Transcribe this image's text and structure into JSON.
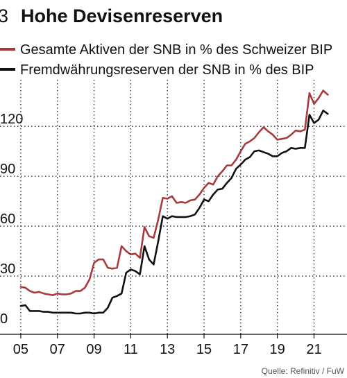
{
  "figure": {
    "number": "3",
    "title": "Hohe Devisenreserven",
    "source": "Quelle: Refinitiv / FuW"
  },
  "colors": {
    "series_total": "#a83a3e",
    "series_fx": "#111111"
  },
  "chart_data": {
    "type": "line",
    "title": "Hohe Devisenreserven",
    "xlabel": "",
    "ylabel": "",
    "x_tick_labels": [
      "05",
      "07",
      "09",
      "11",
      "13",
      "15",
      "17",
      "19",
      "21"
    ],
    "x_ticks": [
      2005,
      2007,
      2009,
      2011,
      2013,
      2015,
      2017,
      2019,
      2021
    ],
    "y_tick_labels": [
      "0",
      "30",
      "60",
      "90",
      "120"
    ],
    "y_ticks": [
      0,
      30,
      60,
      90,
      120
    ],
    "xlim": [
      2004.7,
      2022.8
    ],
    "ylim": [
      -5,
      148
    ],
    "grid": true,
    "legend_position": "top-left",
    "series": [
      {
        "name": "Gesamte Aktiven der SNB in % des Schweizer BIP",
        "color": "#a83a3e",
        "x": [
          2005,
          2005.25,
          2005.5,
          2005.75,
          2006,
          2006.25,
          2006.5,
          2006.75,
          2007,
          2007.25,
          2007.5,
          2007.75,
          2008,
          2008.25,
          2008.5,
          2008.75,
          2009,
          2009.25,
          2009.5,
          2009.75,
          2010,
          2010.25,
          2010.5,
          2010.75,
          2011,
          2011.25,
          2011.5,
          2011.75,
          2012,
          2012.25,
          2012.5,
          2012.75,
          2013,
          2013.25,
          2013.5,
          2013.75,
          2014,
          2014.25,
          2014.5,
          2014.75,
          2015,
          2015.25,
          2015.5,
          2015.75,
          2016,
          2016.25,
          2016.5,
          2016.75,
          2017,
          2017.25,
          2017.5,
          2017.75,
          2018,
          2018.25,
          2018.5,
          2018.75,
          2019,
          2019.25,
          2019.5,
          2019.75,
          2020,
          2020.25,
          2020.5,
          2020.75,
          2021,
          2021.25,
          2021.5,
          2021.75
        ],
        "values": [
          23.5,
          23.0,
          21.0,
          20.0,
          20.5,
          19.5,
          19.0,
          18.5,
          19.5,
          19.0,
          19.0,
          19.5,
          21.0,
          21.0,
          23.0,
          28.0,
          38.0,
          40.0,
          40.0,
          35.0,
          34.5,
          35.0,
          48.0,
          45.0,
          43.0,
          43.5,
          41.0,
          59.5,
          54.0,
          53.0,
          64.0,
          77.0,
          76.5,
          78.0,
          74.0,
          74.5,
          74.0,
          75.5,
          76.0,
          79.0,
          83.0,
          86.0,
          85.0,
          90.0,
          93.0,
          96.5,
          96.5,
          100.0,
          105.0,
          109.5,
          111.0,
          113.0,
          116.5,
          119.5,
          117.0,
          115.0,
          112.0,
          112.5,
          113.0,
          115.0,
          117.5,
          117.0,
          118.0,
          140.0,
          133.5,
          137.0,
          141.5,
          139.0
        ]
      },
      {
        "name": "Fremdwährungsreserven der SNB in % des BIP",
        "color": "#111111",
        "x": [
          2005,
          2005.25,
          2005.5,
          2005.75,
          2006,
          2006.25,
          2006.5,
          2006.75,
          2007,
          2007.25,
          2007.5,
          2007.75,
          2008,
          2008.25,
          2008.5,
          2008.75,
          2009,
          2009.25,
          2009.5,
          2009.75,
          2010,
          2010.25,
          2010.5,
          2010.75,
          2011,
          2011.25,
          2011.5,
          2011.75,
          2012,
          2012.25,
          2012.5,
          2012.75,
          2013,
          2013.25,
          2013.5,
          2013.75,
          2014,
          2014.25,
          2014.5,
          2014.75,
          2015,
          2015.25,
          2015.5,
          2015.75,
          2016,
          2016.25,
          2016.5,
          2016.75,
          2017,
          2017.25,
          2017.5,
          2017.75,
          2018,
          2018.25,
          2018.5,
          2018.75,
          2019,
          2019.25,
          2019.5,
          2019.75,
          2020,
          2020.25,
          2020.5,
          2020.75,
          2021,
          2021.25,
          2021.5,
          2021.75
        ],
        "values": [
          12.0,
          12.5,
          9.0,
          9.0,
          9.0,
          8.5,
          8.5,
          8.0,
          8.0,
          8.0,
          8.0,
          8.0,
          7.5,
          7.5,
          8.0,
          8.0,
          7.5,
          8.0,
          8.0,
          11.0,
          17.0,
          18.0,
          19.5,
          32.0,
          34.0,
          33.0,
          31.0,
          48.0,
          40.0,
          37.0,
          51.0,
          66.0,
          64.5,
          66.0,
          65.5,
          65.5,
          65.5,
          66.0,
          67.0,
          71.0,
          76.0,
          75.0,
          79.0,
          82.0,
          82.5,
          86.0,
          89.0,
          94.5,
          97.0,
          100.0,
          101.5,
          105.0,
          105.5,
          104.5,
          103.5,
          102.0,
          102.0,
          104.0,
          105.0,
          107.0,
          106.5,
          107.0,
          107.0,
          127.0,
          122.0,
          124.0,
          129.5,
          127.5
        ]
      }
    ]
  }
}
